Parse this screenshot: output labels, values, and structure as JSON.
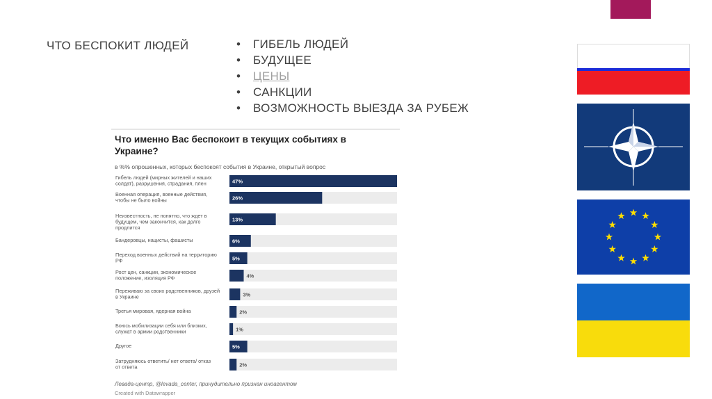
{
  "slide": {
    "title": "ЧТО БЕСПОКИТ ЛЮДЕЙ",
    "bullets": [
      "ГИБЕЛЬ ЛЮДЕЙ",
      "БУДУЩЕЕ",
      "ЦЕНЫ",
      "САНКЦИИ",
      "ВОЗМОЖНОСТЬ ВЫЕЗДА ЗА РУБЕЖ"
    ],
    "accent_color": "#a3195b"
  },
  "chart_data": {
    "type": "bar",
    "orientation": "horizontal",
    "title": "Что именно Вас беспокоит в текущих событиях в Украине?",
    "subtitle": "в %% опрошенных, которых беспокоят события в Украине, открытый вопрос",
    "categories": [
      "Гибель людей (мирных жителей и наших солдат), разрушения, страдания, плен",
      "Военная операция, военные действия, чтобы не было войны",
      "Неизвестность, не понятно, что ждет в будущем, чем закончится, как долго продлится",
      "Бандеровцы, нацисты, фашисты",
      "Переход военных действий на территорию РФ",
      "Рост цен, санкции, экономическое положение, изоляция РФ",
      "Переживаю за своих родственников, друзей в Украине",
      "Третья мировая, ядерная война",
      "Боюсь мобилизации себя или близких, служат в армии родственники",
      "Другое",
      "Затрудняюсь ответить/ нет ответа/ отказ от ответа"
    ],
    "values": [
      47,
      26,
      13,
      6,
      5,
      4,
      3,
      2,
      1,
      5,
      2
    ],
    "value_labels": [
      "47%",
      "26%",
      "13%",
      "6%",
      "5%",
      "4%",
      "3%",
      "2%",
      "1%",
      "5%",
      "2%"
    ],
    "xlim": [
      0,
      47
    ],
    "bar_color": "#1c3461",
    "track_color": "#ececec",
    "source": "Левада-центр, @levada_center, принудительно признан иноагентом",
    "credit": "Created with Datawrapper"
  },
  "flags": [
    {
      "name": "Russia"
    },
    {
      "name": "NATO"
    },
    {
      "name": "European Union"
    },
    {
      "name": "Ukraine"
    }
  ]
}
